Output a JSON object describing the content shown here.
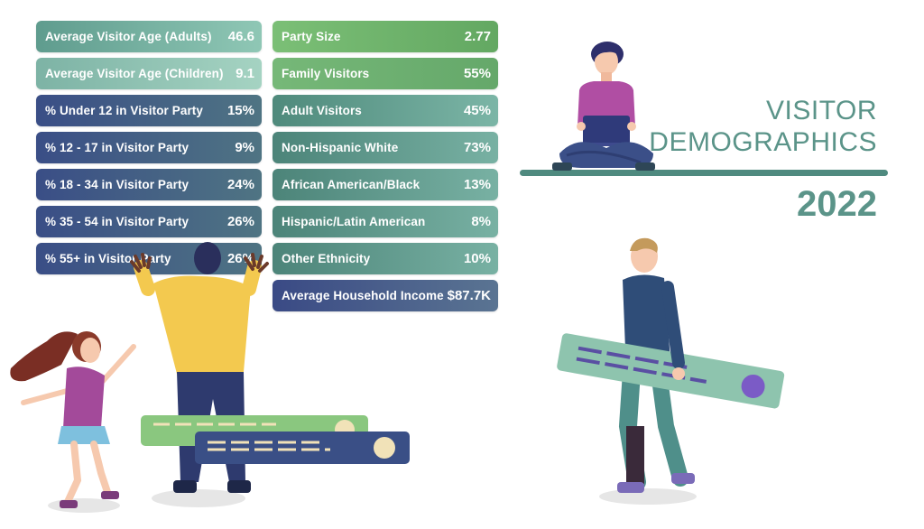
{
  "title": {
    "line1": "VISITOR",
    "line2": "DEMOGRAPHICS",
    "year": "2022"
  },
  "stats_left": [
    {
      "label": "Average Visitor Age (Adults)",
      "value": "46.6"
    },
    {
      "label": "Average Visitor Age (Children)",
      "value": "9.1"
    },
    {
      "label": "% Under 12 in Visitor Party",
      "value": "15%"
    },
    {
      "label": "% 12 - 17 in Visitor Party",
      "value": "9%"
    },
    {
      "label": "% 18 - 34 in Visitor Party",
      "value": "24%"
    },
    {
      "label": "% 35 - 54 in Visitor Party",
      "value": "26%"
    },
    {
      "label": "% 55+ in Visitor Party",
      "value": "26%"
    }
  ],
  "stats_right": [
    {
      "label": "Party Size",
      "value": "2.77"
    },
    {
      "label": "Family Visitors",
      "value": "55%"
    },
    {
      "label": "Adult Visitors",
      "value": "45%"
    },
    {
      "label": "Non-Hispanic White",
      "value": "73%"
    },
    {
      "label": "African American/Black",
      "value": "13%"
    },
    {
      "label": "Hispanic/Latin American",
      "value": "8%"
    },
    {
      "label": "Other Ethnicity",
      "value": "10%"
    },
    {
      "label": "Average Household Income",
      "value": "$87.7K"
    }
  ],
  "colors": {
    "teal_title": "#5b9489",
    "light_green": "#7fc57a",
    "mint": "#8fc1b2",
    "navy": "#3a4d86",
    "slate_teal": "#4e8479"
  }
}
